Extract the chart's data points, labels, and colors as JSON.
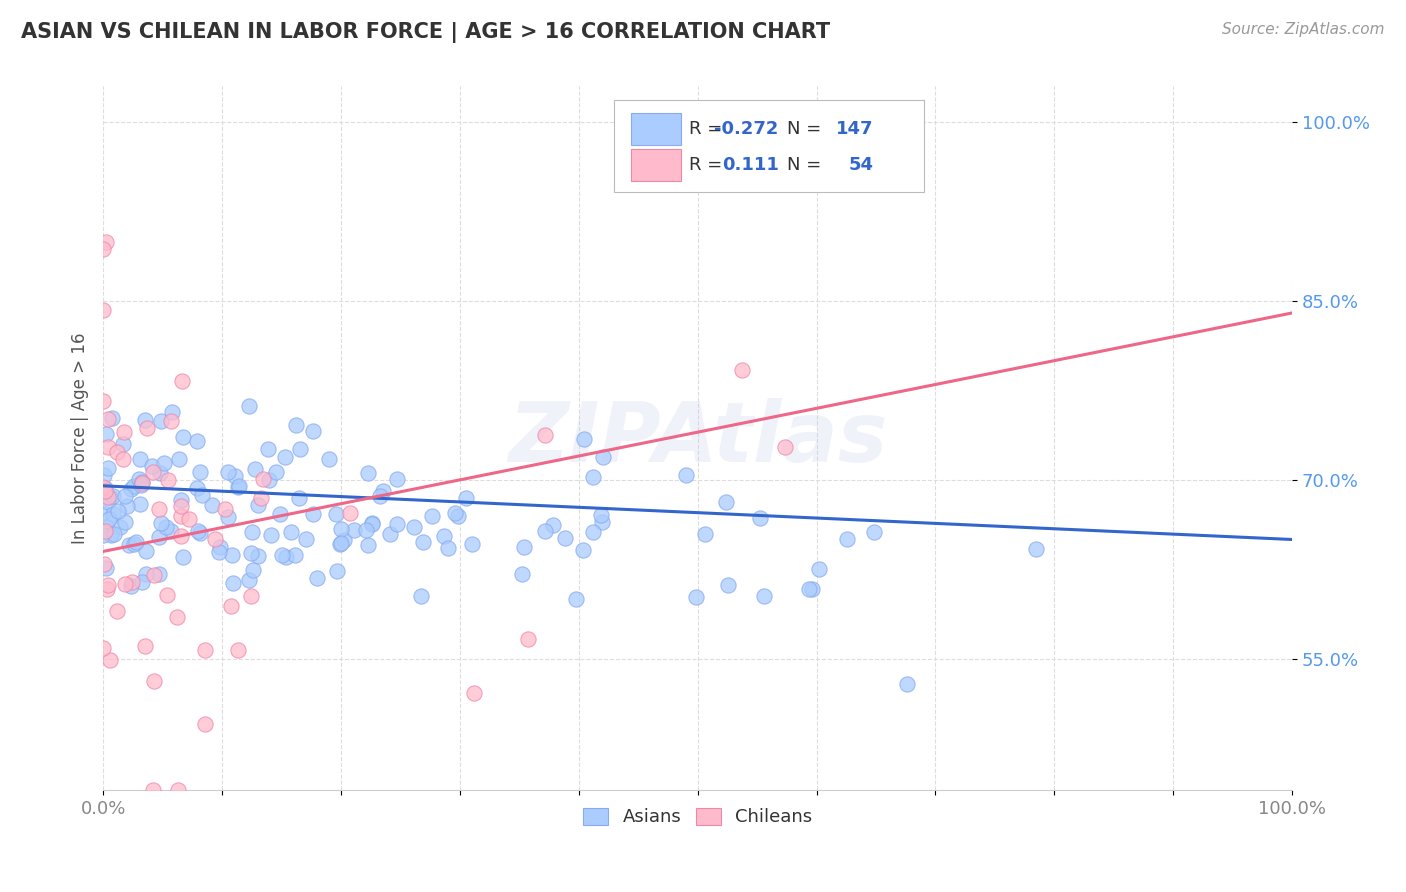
{
  "title": "ASIAN VS CHILEAN IN LABOR FORCE | AGE > 16 CORRELATION CHART",
  "source_text": "Source: ZipAtlas.com",
  "ylabel": "In Labor Force | Age > 16",
  "xlim": [
    0.0,
    1.0
  ],
  "ylim": [
    0.44,
    1.03
  ],
  "x_ticks": [
    0.0,
    0.1,
    0.2,
    0.3,
    0.4,
    0.5,
    0.6,
    0.7,
    0.8,
    0.9,
    1.0
  ],
  "x_tick_labels": [
    "0.0%",
    "",
    "",
    "",
    "",
    "",
    "",
    "",
    "",
    "",
    "100.0%"
  ],
  "y_tick_labels": [
    "55.0%",
    "70.0%",
    "85.0%",
    "100.0%"
  ],
  "y_ticks": [
    0.55,
    0.7,
    0.85,
    1.0
  ],
  "asian_fill": "#aaccff",
  "asian_edge": "#88aaee",
  "chilean_fill": "#ffbbcc",
  "chilean_edge": "#ee88aa",
  "trend_asian_color": "#3366cc",
  "trend_chilean_color": "#ee6688",
  "R_asian": -0.272,
  "N_asian": 147,
  "R_chilean": 0.111,
  "N_chilean": 54,
  "background_color": "#ffffff",
  "grid_color": "#dddddd",
  "watermark_text": "ZIPAtlas",
  "watermark_alpha": 0.18,
  "title_color": "#333333",
  "source_color": "#999999",
  "tick_color_y": "#5599ee",
  "tick_color_x": "#888888"
}
